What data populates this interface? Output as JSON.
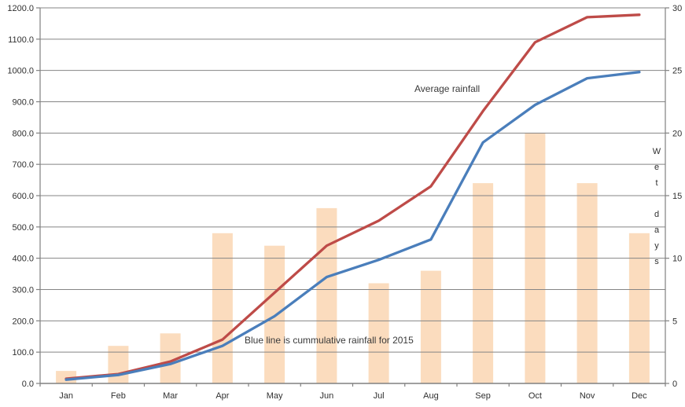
{
  "chart_data": {
    "type": "combo",
    "categories": [
      "Jan",
      "Feb",
      "Mar",
      "Apr",
      "May",
      "Jun",
      "Jul",
      "Aug",
      "Sep",
      "Oct",
      "Nov",
      "Dec"
    ],
    "series": [
      {
        "name": "Wet days",
        "type": "bar",
        "axis": "right",
        "values": [
          1,
          3,
          4,
          12,
          11,
          14,
          8,
          9,
          16,
          20,
          16,
          12
        ],
        "color": "#FBDCBE"
      },
      {
        "name": "Average rainfall",
        "type": "line",
        "axis": "left",
        "values": [
          15,
          30,
          70,
          140,
          290,
          440,
          520,
          630,
          870,
          1090,
          1170,
          1178
        ],
        "color": "#BE4B48"
      },
      {
        "name": "Cumulative rainfall 2015",
        "type": "line",
        "axis": "left",
        "values": [
          12,
          27,
          62,
          120,
          215,
          340,
          395,
          460,
          770,
          890,
          975,
          995
        ],
        "color": "#4A7EBB"
      }
    ],
    "left_axis": {
      "min": 0,
      "max": 1200,
      "step": 100,
      "decimals": 1
    },
    "right_axis": {
      "min": 0,
      "max": 30,
      "step": 5,
      "decimals": 0
    },
    "right_axis_title": "Wet days",
    "annotations": {
      "average_label": "Average rainfall",
      "blue_note": "Blue line is cummulative rainfall for 2015"
    },
    "legend": "none",
    "grid": true,
    "colors": {
      "gridline": "#858585",
      "axis": "#808080",
      "tick_text": "#303030",
      "bar": "#FBDCBE",
      "red_line": "#BE4B48",
      "blue_line": "#4A7EBB",
      "background": "#FFFFFF"
    }
  }
}
